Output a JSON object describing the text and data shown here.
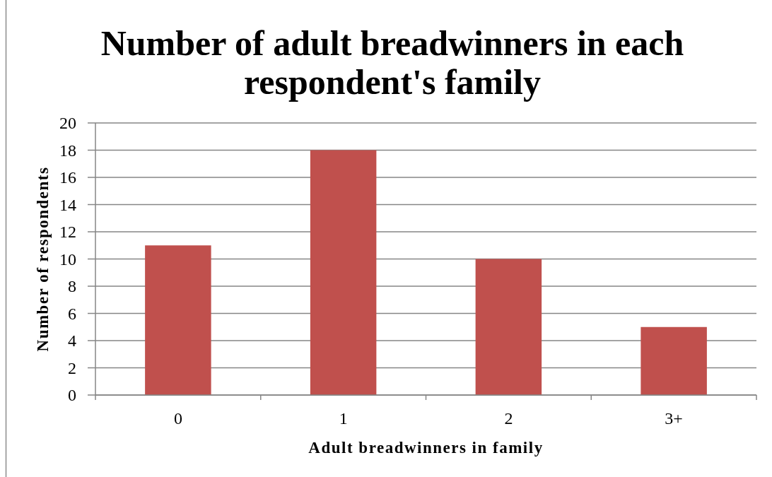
{
  "chart_data": {
    "type": "bar",
    "title": "Number of adult breadwinners in each respondent's family",
    "xlabel": "Adult breadwinners in family",
    "ylabel": "Number of respondents",
    "categories": [
      "0",
      "1",
      "2",
      "3+"
    ],
    "values": [
      11,
      18,
      10,
      5
    ],
    "color": "#c0504d",
    "ylim": [
      0,
      20
    ],
    "yticks": [
      0,
      2,
      4,
      6,
      8,
      10,
      12,
      14,
      16,
      18,
      20
    ],
    "grid": "y"
  }
}
